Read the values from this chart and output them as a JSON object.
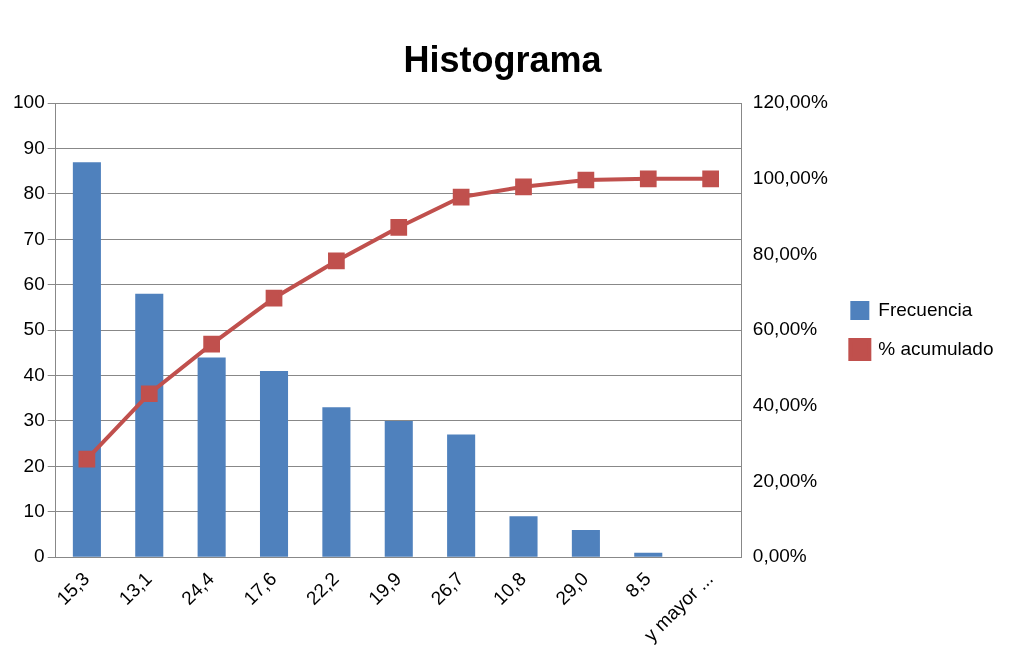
{
  "chart_data": {
    "type": "bar",
    "title": "Histograma",
    "categories": [
      "15,3",
      "13,1",
      "24,4",
      "17,6",
      "22,2",
      "19,9",
      "26,7",
      "10,8",
      "29,0",
      "8,5",
      "y mayor ..."
    ],
    "series": [
      {
        "name": "Frecuencia",
        "color": "#4f81bd",
        "values": [
          87,
          58,
          44,
          41,
          33,
          30,
          27,
          9,
          6,
          1,
          0
        ]
      },
      {
        "name": "% acumulado",
        "type": "line",
        "axis": "y2",
        "color": "#c0504d",
        "values": [
          25.9,
          43.2,
          56.3,
          68.5,
          78.3,
          87.2,
          95.2,
          97.9,
          99.7,
          100,
          100
        ]
      }
    ],
    "ylim": [
      0,
      100
    ],
    "yticks": [
      0,
      10,
      20,
      30,
      40,
      50,
      60,
      70,
      80,
      90,
      100
    ],
    "y2lim": [
      0,
      120
    ],
    "y2ticks": [
      {
        "value": 0,
        "label": "0,00%"
      },
      {
        "value": 20,
        "label": "20,00%"
      },
      {
        "value": 40,
        "label": "40,00%"
      },
      {
        "value": 60,
        "label": "60,00%"
      },
      {
        "value": 80,
        "label": "80,00%"
      },
      {
        "value": 100,
        "label": "100,00%"
      },
      {
        "value": 120,
        "label": "120,00%"
      }
    ],
    "grid": "y",
    "legend": "right",
    "marker": "square",
    "line_style": "solid"
  }
}
